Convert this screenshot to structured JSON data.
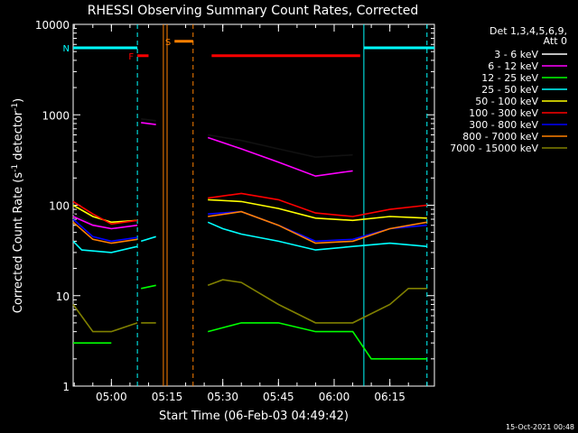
{
  "chart_data": {
    "type": "line",
    "title": "RHESSI Observing Summary Count Rates, Corrected",
    "xlabel": "Start Time (06-Feb-03 04:49:42)",
    "ylabel": "Corrected Count Rate (s",
    "ylabel_sup1": "-1",
    "ylabel_mid": " detector",
    "ylabel_sup2": "-1",
    "ylabel_end": ")",
    "yscale": "log",
    "ylim": [
      1,
      10000
    ],
    "xlim": [
      "04:49:42",
      "06:27:00"
    ],
    "y_ticks": [
      "1",
      "10",
      "100",
      "1000",
      "10000"
    ],
    "x_ticks": [
      "05:00",
      "05:15",
      "05:30",
      "05:45",
      "06:00",
      "06:15"
    ],
    "legend_header": [
      "Det 1,3,4,5,6,9,",
      "Att 0"
    ],
    "legend_position": "top-right",
    "footer_date": "15-Oct-2021 00:48",
    "series": [
      {
        "name": "3 - 6 keV",
        "color": "#000000",
        "values_segments": [
          [
            [
              "04:49:42",
              80
            ],
            [
              "04:55",
              62
            ],
            [
              "05:00",
              55
            ],
            [
              "05:05",
              58
            ],
            [
              "05:07",
              60
            ]
          ],
          [
            [
              "05:08",
              900
            ],
            [
              "05:12",
              860
            ]
          ],
          [
            [
              "05:26",
              600
            ],
            [
              "05:35",
              520
            ],
            [
              "05:45",
              420
            ],
            [
              "05:55",
              340
            ],
            [
              "06:05",
              360
            ]
          ]
        ]
      },
      {
        "name": "6 - 12 keV",
        "color": "#ff00ff",
        "values_segments": [
          [
            [
              "04:49:42",
              75
            ],
            [
              "04:55",
              60
            ],
            [
              "05:00",
              55
            ],
            [
              "05:07",
              60
            ]
          ],
          [
            [
              "05:08",
              820
            ],
            [
              "05:12",
              780
            ]
          ],
          [
            [
              "05:26",
              560
            ],
            [
              "05:35",
              420
            ],
            [
              "05:45",
              300
            ],
            [
              "05:55",
              210
            ],
            [
              "06:05",
              240
            ]
          ]
        ]
      },
      {
        "name": "12 - 25 keV",
        "color": "#00ff00",
        "values_segments": [
          [
            [
              "04:49:42",
              3
            ],
            [
              "04:55",
              3
            ],
            [
              "05:00",
              3
            ]
          ],
          [
            [
              "05:08",
              12
            ],
            [
              "05:12",
              13
            ]
          ],
          [
            [
              "05:26",
              4
            ],
            [
              "05:35",
              5
            ],
            [
              "05:45",
              5
            ],
            [
              "05:55",
              4
            ],
            [
              "06:05",
              4
            ],
            [
              "06:10",
              2
            ],
            [
              "06:20",
              2
            ],
            [
              "06:25",
              2
            ]
          ]
        ]
      },
      {
        "name": "25 - 50 keV",
        "color": "#00ffff",
        "values_segments": [
          [
            [
              "04:49:42",
              40
            ],
            [
              "04:52",
              32
            ],
            [
              "05:00",
              30
            ],
            [
              "05:07",
              35
            ]
          ],
          [
            [
              "05:08",
              40
            ],
            [
              "05:12",
              45
            ]
          ],
          [
            [
              "05:26",
              65
            ],
            [
              "05:30",
              55
            ],
            [
              "05:35",
              48
            ],
            [
              "05:45",
              40
            ],
            [
              "05:55",
              32
            ],
            [
              "06:05",
              35
            ],
            [
              "06:15",
              38
            ],
            [
              "06:25",
              35
            ]
          ]
        ]
      },
      {
        "name": "50 - 100 keV",
        "color": "#ffff00",
        "values_segments": [
          [
            [
              "04:49:42",
              100
            ],
            [
              "04:55",
              75
            ],
            [
              "05:00",
              65
            ],
            [
              "05:07",
              68
            ]
          ],
          [
            [
              "05:26",
              115
            ],
            [
              "05:35",
              110
            ],
            [
              "05:45",
              92
            ],
            [
              "05:55",
              72
            ],
            [
              "06:05",
              68
            ],
            [
              "06:15",
              75
            ],
            [
              "06:25",
              72
            ]
          ]
        ]
      },
      {
        "name": "100 - 300 keV",
        "color": "#ff0000",
        "values_segments": [
          [
            [
              "04:49:42",
              110
            ],
            [
              "04:55",
              80
            ],
            [
              "05:00",
              62
            ],
            [
              "05:07",
              68
            ]
          ],
          [
            [
              "05:26",
              120
            ],
            [
              "05:35",
              135
            ],
            [
              "05:45",
              115
            ],
            [
              "05:55",
              82
            ],
            [
              "06:05",
              75
            ],
            [
              "06:15",
              90
            ],
            [
              "06:25",
              100
            ]
          ]
        ]
      },
      {
        "name": "300 - 800 keV",
        "color": "#0000ff",
        "values_segments": [
          [
            [
              "04:49:42",
              70
            ],
            [
              "04:55",
              45
            ],
            [
              "05:00",
              40
            ],
            [
              "05:07",
              44
            ]
          ],
          [
            [
              "05:26",
              80
            ],
            [
              "05:35",
              85
            ],
            [
              "05:45",
              60
            ],
            [
              "05:55",
              40
            ],
            [
              "06:05",
              42
            ],
            [
              "06:15",
              55
            ],
            [
              "06:25",
              60
            ]
          ]
        ]
      },
      {
        "name": "800 - 7000 keV",
        "color": "#ff8000",
        "values_segments": [
          [
            [
              "04:49:42",
              65
            ],
            [
              "04:55",
              42
            ],
            [
              "05:00",
              38
            ],
            [
              "05:07",
              42
            ]
          ],
          [
            [
              "05:26",
              75
            ],
            [
              "05:35",
              85
            ],
            [
              "05:45",
              60
            ],
            [
              "05:55",
              38
            ],
            [
              "06:05",
              40
            ],
            [
              "06:15",
              55
            ],
            [
              "06:25",
              65
            ]
          ]
        ]
      },
      {
        "name": "7000 - 15000 keV",
        "color": "#808000",
        "values_segments": [
          [
            [
              "04:49:42",
              8
            ],
            [
              "04:55",
              4
            ],
            [
              "05:00",
              4
            ],
            [
              "05:07",
              5
            ]
          ],
          [
            [
              "05:08",
              5
            ],
            [
              "05:12",
              5
            ]
          ],
          [
            [
              "05:26",
              13
            ],
            [
              "05:30",
              15
            ],
            [
              "05:35",
              14
            ],
            [
              "05:45",
              8
            ],
            [
              "05:55",
              5
            ],
            [
              "06:05",
              5
            ],
            [
              "06:15",
              8
            ],
            [
              "06:20",
              12
            ],
            [
              "06:25",
              12
            ]
          ]
        ]
      }
    ],
    "flag_bars": [
      {
        "label": "F",
        "color": "#ff0000",
        "start": "05:07",
        "end": "05:10",
        "level": 4500
      },
      {
        "label": "N",
        "color": "#00ffff",
        "start": "04:49:42",
        "end": "05:07",
        "level": 5500
      },
      {
        "label": "",
        "color": "#00ffff",
        "start": "06:08",
        "end": "06:27",
        "level": 5500
      },
      {
        "label": "S",
        "color": "#ff8000",
        "start": "05:17",
        "end": "05:22",
        "level": 6500
      },
      {
        "label": "",
        "color": "#ff0000",
        "start": "05:27",
        "end": "06:07",
        "level": 4500
      }
    ],
    "vertical_markers": [
      {
        "time": "05:07",
        "color": "#00ffff",
        "style": "dashed"
      },
      {
        "time": "06:08",
        "color": "#00ffff",
        "style": "solid"
      },
      {
        "time": "06:25",
        "color": "#00ffff",
        "style": "dashed"
      },
      {
        "time": "05:14",
        "color": "#ff8000",
        "style": "solid"
      },
      {
        "time": "05:15",
        "color": "#ff8000",
        "style": "solid"
      },
      {
        "time": "05:22",
        "color": "#ff8000",
        "style": "dashed"
      }
    ]
  }
}
